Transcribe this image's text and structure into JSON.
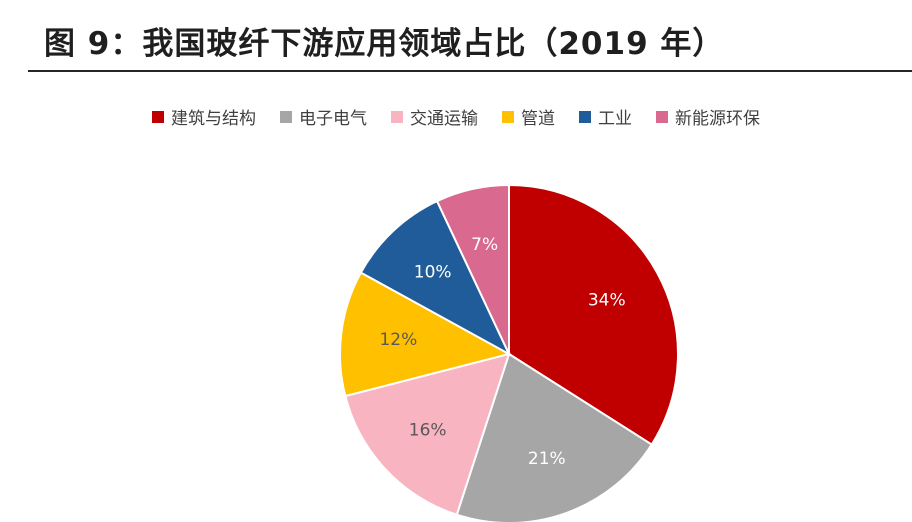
{
  "page": {
    "title": "图 9：我国玻纤下游应用领域占比（2019 年）"
  },
  "chart_data": {
    "type": "pie",
    "title": "",
    "legend_position": "top",
    "slices": [
      {
        "name": "建筑与结构",
        "value": 34,
        "label": "34%",
        "color": "#C00000",
        "label_color": "#ffffff"
      },
      {
        "name": "电子电气",
        "value": 21,
        "label": "21%",
        "color": "#A6A6A6",
        "label_color": "#ffffff"
      },
      {
        "name": "交通运输",
        "value": 16,
        "label": "16%",
        "color": "#F8B4C0",
        "label_color": "#595959"
      },
      {
        "name": "管道",
        "value": 12,
        "label": "12%",
        "color": "#FFC000",
        "label_color": "#595959"
      },
      {
        "name": "工业",
        "value": 10,
        "label": "10%",
        "color": "#1F5C99",
        "label_color": "#ffffff"
      },
      {
        "name": "新能源环保",
        "value": 7,
        "label": "7%",
        "color": "#D9698E",
        "label_color": "#ffffff"
      }
    ]
  }
}
